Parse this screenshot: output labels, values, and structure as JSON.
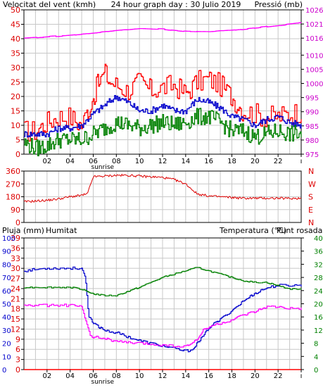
{
  "header": {
    "left_title": "Velocitat del vent (kmh)",
    "center_title": "24 hour graph day : 30 Julio 2019",
    "right_title": "Pressió (mb)",
    "bottom_left_title": "Pluja (mm)",
    "bottom_humidity_title": "Humitat",
    "bottom_right_title": "Temperatura (°C)",
    "bottom_dew_title": "Punt rosada"
  },
  "colors": {
    "wind_gust": "#ff0000",
    "wind_avg": "#0000cc",
    "wind_min": "#008000",
    "pressure": "#ff00ff",
    "direction": "#dd0000",
    "humidity": "#0000cc",
    "temperature": "#008000",
    "dew_point": "#ff00ff",
    "rain": "#ff0000",
    "grid": "#c8c8c8",
    "left_axis": "#dd0000",
    "right_axis_pressure": "#cc00cc",
    "rain_axis": "#0000cc",
    "temp_axis": "#008000"
  },
  "chart_data": [
    {
      "type": "line",
      "panel": "wind",
      "title": "24 hour graph day : 30 Julio 2019",
      "ylabel": "Velocitat del vent (kmh)",
      "y2label": "Pressió (mb)",
      "ylim": [
        0,
        50
      ],
      "yticks": [
        0,
        5,
        10,
        15,
        20,
        25,
        30,
        35,
        40,
        45,
        50
      ],
      "y2lim": [
        975,
        1026
      ],
      "y2ticks": [
        975,
        980,
        985,
        990,
        995,
        1000,
        1005,
        1010,
        1016,
        1021,
        1026
      ],
      "xlim": [
        0,
        24
      ],
      "xticks": [
        "02",
        "04",
        "06",
        "08",
        "10",
        "12",
        "14",
        "16",
        "18",
        "20",
        "22",
        "ı"
      ],
      "sunrise_label": "sunrise",
      "sunrise_hour": 6.2,
      "series": [
        {
          "name": "gust",
          "axis": "left",
          "x": [
            0,
            1,
            2,
            3,
            4,
            5,
            6,
            6.5,
            7,
            7.5,
            8,
            9,
            10,
            11,
            12,
            13,
            14,
            15,
            16,
            17,
            18,
            19,
            20,
            21,
            22,
            23,
            24
          ],
          "y": [
            8,
            8,
            11,
            13,
            13,
            10,
            20,
            25,
            28,
            25,
            24,
            22,
            25,
            22,
            23,
            24,
            21,
            25,
            26,
            24,
            20,
            15,
            14,
            13,
            13,
            14,
            15
          ]
        },
        {
          "name": "average",
          "axis": "left",
          "x": [
            0,
            1,
            2,
            3,
            4,
            5,
            6,
            7,
            8,
            9,
            10,
            11,
            12,
            13,
            14,
            15,
            16,
            17,
            18,
            19,
            20,
            21,
            22,
            23,
            24
          ],
          "y": [
            7,
            7,
            7,
            9,
            9,
            10,
            14,
            17,
            20,
            18,
            15,
            15,
            17,
            15,
            15,
            19,
            18,
            16,
            13,
            12,
            10,
            12,
            13,
            11,
            10
          ]
        },
        {
          "name": "minimum",
          "axis": "left",
          "x": [
            0,
            1,
            2,
            3,
            4,
            5,
            6,
            7,
            8,
            9,
            10,
            11,
            12,
            13,
            14,
            15,
            16,
            17,
            18,
            19,
            20,
            21,
            22,
            23,
            24
          ],
          "y": [
            4,
            2,
            3,
            5,
            5,
            5,
            7,
            9,
            11,
            10,
            9,
            10,
            11,
            10,
            11,
            13,
            13,
            11,
            8,
            8,
            6,
            7,
            8,
            7,
            7
          ]
        },
        {
          "name": "pressure",
          "axis": "right",
          "x": [
            0,
            2,
            4,
            6,
            8,
            10,
            12,
            14,
            16,
            18,
            20,
            22,
            24
          ],
          "y": [
            1016,
            1016.5,
            1017,
            1017.8,
            1018.7,
            1019.4,
            1019.2,
            1018.4,
            1018.2,
            1018.8,
            1019.6,
            1020.5,
            1021.5
          ]
        }
      ]
    },
    {
      "type": "line",
      "panel": "direction",
      "ylim": [
        0,
        360
      ],
      "yticks": [
        0,
        90,
        180,
        270,
        360
      ],
      "right_labels": [
        "N",
        "W",
        "S",
        "E",
        "N"
      ],
      "xlim": [
        0,
        24
      ],
      "series": [
        {
          "name": "direction",
          "x": [
            0,
            1,
            2,
            3,
            4,
            5,
            5.5,
            6,
            7,
            8,
            9,
            10,
            11,
            12,
            13,
            14,
            15,
            16,
            17,
            18,
            19,
            20,
            21,
            22,
            23,
            24
          ],
          "y": [
            145,
            150,
            155,
            165,
            180,
            190,
            200,
            320,
            325,
            330,
            330,
            325,
            320,
            315,
            300,
            270,
            200,
            185,
            180,
            175,
            170,
            170,
            170,
            170,
            168,
            170
          ]
        }
      ]
    },
    {
      "type": "line",
      "panel": "humidity_temperature",
      "ylabel": "Pluja (mm)",
      "ylim": [
        0,
        39
      ],
      "yticks": [
        0,
        3,
        6,
        9,
        12,
        15,
        18,
        21,
        24,
        27,
        30,
        33,
        36,
        39
      ],
      "humidity_ticks": [
        0,
        10,
        20,
        30,
        40,
        50,
        60,
        70,
        80,
        90,
        100
      ],
      "y2label": "Temperatura (°C)",
      "y2lim": [
        0,
        40
      ],
      "y2ticks": [
        0,
        4,
        8,
        12,
        16,
        20,
        24,
        28,
        32,
        36,
        40
      ],
      "xlim": [
        0,
        24
      ],
      "xticks": [
        "02",
        "04",
        "06",
        "08",
        "10",
        "12",
        "14",
        "16",
        "18",
        "20",
        "22",
        "ı"
      ],
      "sunrise_label": "sunrise",
      "sunrise_hour": 6.2,
      "series": [
        {
          "name": "humitat",
          "axis": "humidity",
          "x": [
            0,
            1,
            2,
            3,
            4,
            5,
            5.3,
            5.6,
            6,
            7,
            8,
            9,
            10,
            11,
            12,
            13,
            14,
            14.5,
            15,
            15.5,
            16,
            17,
            18,
            19,
            20,
            21,
            22,
            23,
            24
          ],
          "y": [
            75,
            76,
            77,
            77,
            77,
            77,
            70,
            40,
            35,
            30,
            28,
            25,
            22,
            20,
            18,
            16,
            14,
            15,
            20,
            25,
            32,
            38,
            45,
            52,
            58,
            62,
            64,
            64,
            64
          ]
        },
        {
          "name": "temperatura",
          "axis": "right",
          "x": [
            0,
            2,
            4,
            5,
            6,
            7,
            8,
            10,
            12,
            14,
            15,
            16,
            17,
            18,
            19,
            20,
            21,
            22,
            23,
            24
          ],
          "y": [
            25,
            25,
            25,
            24.5,
            23,
            22.5,
            22.5,
            25,
            28,
            30,
            31,
            30,
            29,
            28,
            27,
            26.5,
            26.5,
            25.5,
            24.5,
            24.5
          ]
        },
        {
          "name": "punt_rosada",
          "axis": "right",
          "x": [
            0,
            2,
            4,
            5,
            5.3,
            5.7,
            6,
            7,
            8,
            10,
            12,
            13,
            14,
            15,
            15.5,
            16,
            17,
            18,
            19,
            20,
            21,
            22,
            23,
            24
          ],
          "y": [
            19.5,
            19.5,
            19.5,
            19.2,
            15,
            10.5,
            10,
            9.5,
            8.5,
            8,
            7.5,
            7.2,
            7,
            9,
            12,
            13,
            14,
            15,
            16.5,
            17.5,
            19,
            19,
            18.5,
            18.5
          ]
        },
        {
          "name": "pluja",
          "axis": "left",
          "x": [
            0,
            24
          ],
          "y": [
            0,
            0
          ]
        }
      ]
    }
  ]
}
